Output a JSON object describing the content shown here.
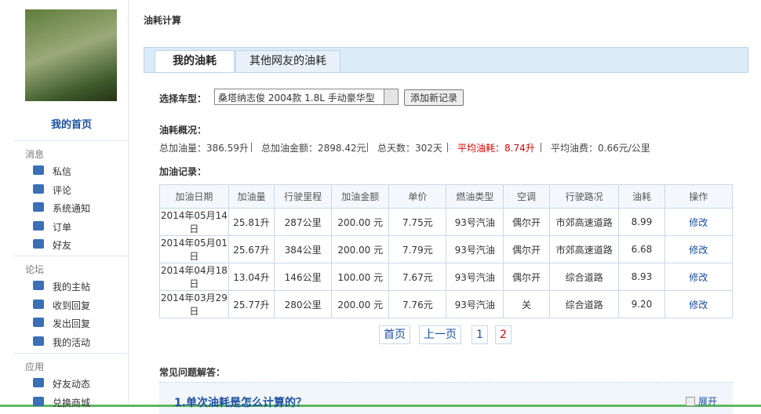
{
  "sidebar": {
    "home": "我的首页",
    "groups": [
      {
        "title": "消息",
        "items": [
          "私信",
          "评论",
          "系统通知",
          "订单",
          "好友"
        ]
      },
      {
        "title": "论坛",
        "items": [
          "我的主帖",
          "收到回复",
          "发出回复",
          "我的活动"
        ]
      },
      {
        "title": "应用",
        "items": [
          "好友动态",
          "兑换商城"
        ]
      }
    ]
  },
  "page_title": "油耗计算",
  "tabs": [
    "我的油耗",
    "其他网友的油耗"
  ],
  "car_select": {
    "label": "选择车型：",
    "value": "桑塔纳志俊 2004款 1.8L 手动豪华型",
    "button": "添加新记录"
  },
  "summary": {
    "title": "油耗概况：",
    "items": [
      "总加油量：386.59升",
      "总加油金额：2898.42元",
      "总天数：302天",
      "平均油耗：8.74升",
      "平均油费：0.66元/公里"
    ]
  },
  "records": {
    "title": "加油记录：",
    "headers": [
      "加油日期",
      "加油量",
      "行驶里程",
      "加油金额",
      "单价",
      "燃油类型",
      "空调",
      "行驶路况",
      "油耗",
      "操作"
    ],
    "rows": [
      [
        "2014年05月14日",
        "25.81升",
        "287公里",
        "200.00 元",
        "7.75元",
        "93号汽油",
        "偶尔开",
        "市郊高速道路",
        "8.99",
        "修改"
      ],
      [
        "2014年05月01日",
        "25.67升",
        "384公里",
        "200.00 元",
        "7.79元",
        "93号汽油",
        "偶尔开",
        "市郊高速道路",
        "6.68",
        "修改"
      ],
      [
        "2014年04月18日",
        "13.04升",
        "146公里",
        "100.00 元",
        "7.67元",
        "93号汽油",
        "偶尔开",
        "综合道路",
        "8.93",
        "修改"
      ],
      [
        "2014年03月29日",
        "25.77升",
        "280公里",
        "200.00 元",
        "7.76元",
        "93号汽油",
        "关",
        "综合道路",
        "9.20",
        "修改"
      ]
    ]
  },
  "pagination": [
    "首页",
    "上一页",
    "1",
    "2"
  ],
  "faq": {
    "title": "常见问题解答：",
    "items": [
      {
        "question": "1.单次油耗是怎么计算的？",
        "toggle": "展开"
      }
    ]
  }
}
